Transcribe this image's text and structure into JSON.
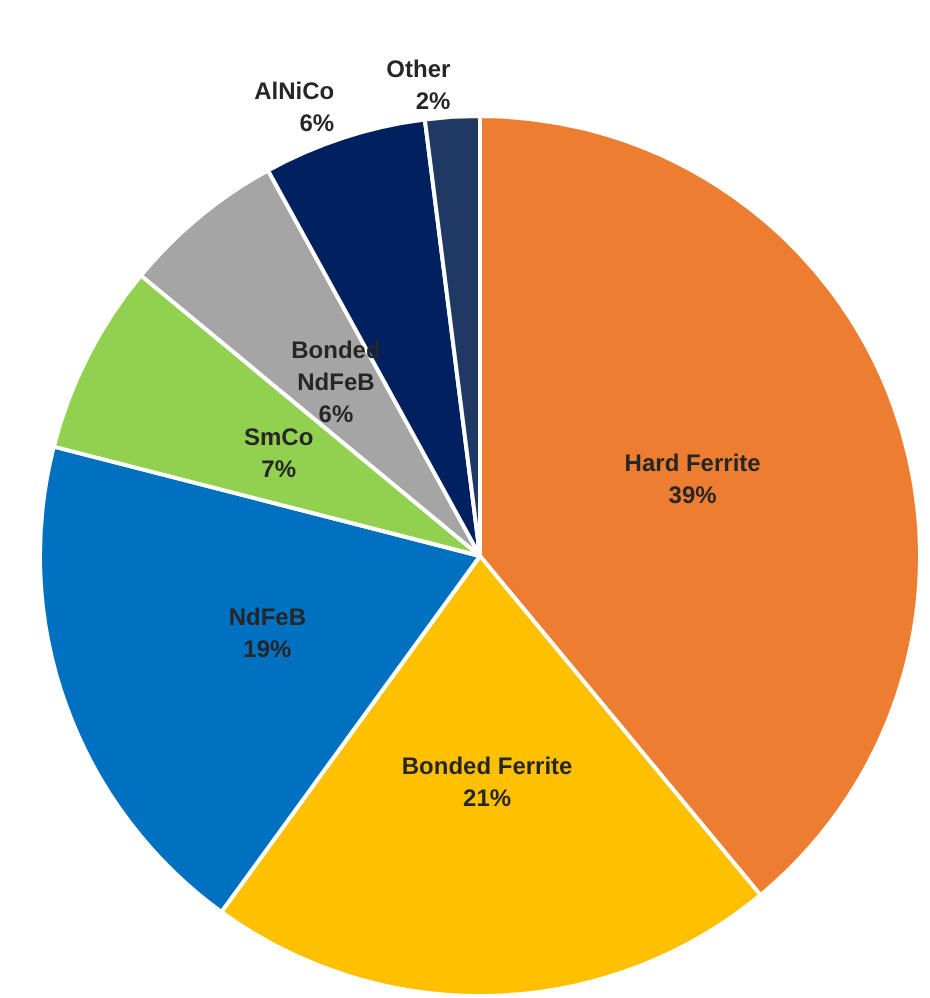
{
  "chart_data": {
    "type": "pie",
    "categories": [
      "Hard Ferrite",
      "Bonded Ferrite",
      "NdFeB",
      "SmCo",
      "Bonded NdFeB",
      "AlNiCo",
      "Other"
    ],
    "values": [
      39,
      21,
      19,
      7,
      6,
      6,
      2
    ],
    "value_labels": [
      "39%",
      "21%",
      "19%",
      "7%",
      "6%",
      "6%",
      "2%"
    ],
    "colors": [
      "#ed7d31",
      "#ffc000",
      "#0070c0",
      "#92d050",
      "#a5a5a5",
      "#002060",
      "#203864"
    ],
    "legend": false
  }
}
